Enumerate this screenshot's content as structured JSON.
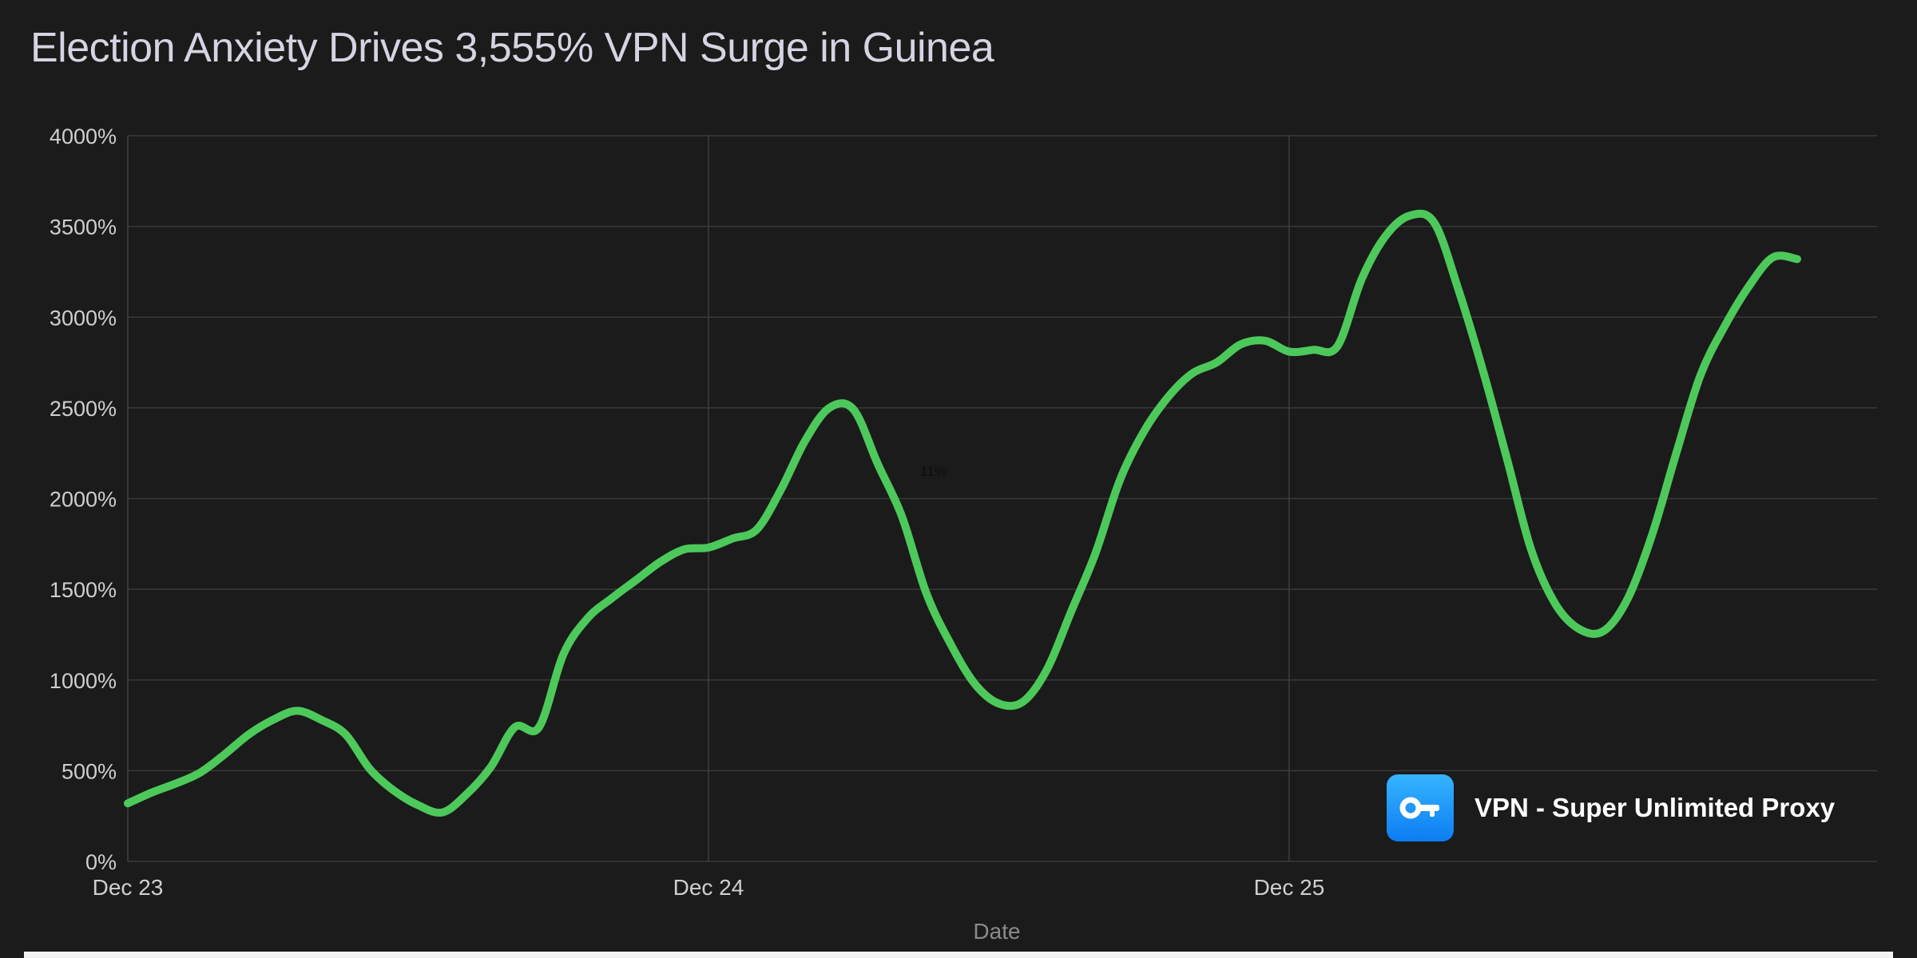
{
  "chart_data": {
    "type": "line",
    "title": "Election Anxiety Drives 3,555% VPN Surge in Guinea",
    "xlabel": "Date",
    "ylabel": "",
    "ylim": [
      0,
      4000
    ],
    "yticks": [
      "0%",
      "500%",
      "1000%",
      "1500%",
      "2000%",
      "2500%",
      "3000%",
      "3500%",
      "4000%"
    ],
    "xticks": [
      {
        "label": "Dec 23",
        "t": 0
      },
      {
        "label": "Dec 24",
        "t": 24
      },
      {
        "label": "Dec 25",
        "t": 48
      }
    ],
    "xlim": [
      0,
      72.3
    ],
    "grid": true,
    "annotation": {
      "text": "11%",
      "t": 33.3,
      "y": 2100
    },
    "series": [
      {
        "color": "#4cc95a",
        "points": [
          [
            0,
            320
          ],
          [
            1,
            380
          ],
          [
            2,
            430
          ],
          [
            3,
            490
          ],
          [
            4,
            590
          ],
          [
            5,
            700
          ],
          [
            6,
            780
          ],
          [
            7,
            830
          ],
          [
            8,
            780
          ],
          [
            9,
            700
          ],
          [
            10,
            510
          ],
          [
            11,
            390
          ],
          [
            12,
            310
          ],
          [
            13,
            270
          ],
          [
            14,
            370
          ],
          [
            15,
            520
          ],
          [
            16,
            740
          ],
          [
            17,
            740
          ],
          [
            18,
            1140
          ],
          [
            19,
            1340
          ],
          [
            20,
            1450
          ],
          [
            21,
            1550
          ],
          [
            22,
            1650
          ],
          [
            23,
            1720
          ],
          [
            24,
            1730
          ],
          [
            25,
            1780
          ],
          [
            26,
            1830
          ],
          [
            27,
            2050
          ],
          [
            28,
            2320
          ],
          [
            29,
            2500
          ],
          [
            30,
            2490
          ],
          [
            31,
            2190
          ],
          [
            32,
            1900
          ],
          [
            33,
            1480
          ],
          [
            34,
            1200
          ],
          [
            35,
            980
          ],
          [
            36,
            870
          ],
          [
            37,
            880
          ],
          [
            38,
            1060
          ],
          [
            39,
            1380
          ],
          [
            40,
            1700
          ],
          [
            41,
            2100
          ],
          [
            42,
            2370
          ],
          [
            43,
            2560
          ],
          [
            44,
            2690
          ],
          [
            45,
            2750
          ],
          [
            46,
            2850
          ],
          [
            47,
            2870
          ],
          [
            48,
            2810
          ],
          [
            49,
            2820
          ],
          [
            50,
            2840
          ],
          [
            51,
            3210
          ],
          [
            52,
            3450
          ],
          [
            53,
            3560
          ],
          [
            54,
            3520
          ],
          [
            55,
            3150
          ],
          [
            56,
            2710
          ],
          [
            57,
            2220
          ],
          [
            58,
            1720
          ],
          [
            59,
            1420
          ],
          [
            60,
            1280
          ],
          [
            61,
            1270
          ],
          [
            62,
            1450
          ],
          [
            63,
            1800
          ],
          [
            64,
            2250
          ],
          [
            65,
            2680
          ],
          [
            66,
            2950
          ],
          [
            67,
            3170
          ],
          [
            68,
            3330
          ],
          [
            69,
            3320
          ]
        ]
      }
    ]
  },
  "brand": {
    "name": "VPN - Super Unlimited Proxy",
    "icon": "key-icon",
    "color": "#1a8ff6"
  }
}
